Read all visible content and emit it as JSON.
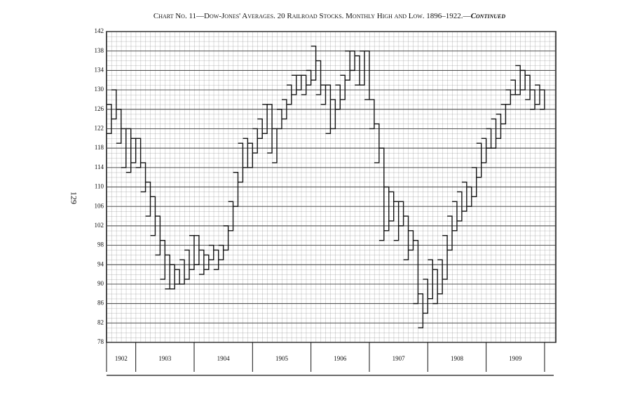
{
  "page_number": "129",
  "chart_data": {
    "type": "range-bracket",
    "title": "Chart No. 11—Dow-Jones' Averages.  20 Railroad Stocks.  Monthly High and Low.  1896–1922.—",
    "title_suffix": "Continued",
    "ylim": [
      78,
      142
    ],
    "yticks": [
      78,
      82,
      86,
      90,
      94,
      98,
      102,
      106,
      110,
      114,
      118,
      122,
      126,
      130,
      134,
      138,
      142
    ],
    "grid": true,
    "color": "#111111",
    "years": [
      {
        "label": "1902",
        "high": [
          127,
          130,
          126,
          122,
          122,
          120
        ],
        "low": [
          121,
          124,
          119,
          114,
          113,
          115
        ]
      },
      {
        "label": "1903",
        "high": [
          120,
          115,
          111,
          108,
          104,
          99,
          96,
          94,
          93,
          95,
          97,
          100
        ],
        "low": [
          114,
          109,
          104,
          100,
          96,
          91,
          89,
          89,
          90,
          90,
          91,
          93
        ]
      },
      {
        "label": "1904",
        "high": [
          100,
          97,
          96,
          98,
          97,
          98,
          102,
          107,
          113,
          119,
          120,
          119
        ],
        "low": [
          94,
          92,
          93,
          95,
          93,
          95,
          97,
          101,
          106,
          111,
          114,
          114
        ]
      },
      {
        "label": "1905",
        "high": [
          122,
          124,
          127,
          127,
          122,
          126,
          128,
          131,
          133,
          133,
          133,
          134
        ],
        "low": [
          117,
          120,
          121,
          117,
          115,
          122,
          124,
          127,
          129,
          130,
          129,
          131
        ]
      },
      {
        "label": "1906",
        "high": [
          139,
          136,
          131,
          131,
          128,
          131,
          133,
          138,
          138,
          137,
          138,
          138
        ],
        "low": [
          132,
          129,
          127,
          121,
          122,
          126,
          128,
          132,
          134,
          131,
          131,
          128
        ]
      },
      {
        "label": "1907",
        "high": [
          128,
          123,
          118,
          110,
          109,
          107,
          107,
          104,
          101,
          99,
          88,
          91
        ],
        "low": [
          122,
          115,
          99,
          101,
          103,
          99,
          102,
          95,
          97,
          86,
          81,
          84
        ]
      },
      {
        "label": "1908",
        "high": [
          95,
          93,
          95,
          100,
          104,
          107,
          109,
          111,
          110,
          114,
          119,
          120
        ],
        "low": [
          87,
          86,
          88,
          91,
          97,
          101,
          103,
          105,
          106,
          108,
          112,
          115
        ]
      },
      {
        "label": "1909",
        "high": [
          122,
          124,
          125,
          127,
          130,
          132,
          135,
          134,
          133,
          130,
          131,
          130
        ],
        "low": [
          118,
          118,
          120,
          123,
          127,
          129,
          129,
          130,
          128,
          126,
          127,
          126
        ]
      }
    ]
  }
}
